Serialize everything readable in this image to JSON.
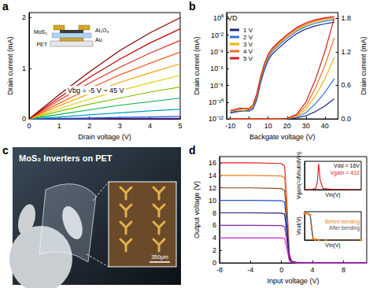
{
  "chart_data": [
    {
      "title": "a",
      "type": "line",
      "x_label": "Drain voltage (V)",
      "y_label": "Drain current (mA)",
      "x": [
        0,
        1,
        2,
        3,
        4,
        5
      ],
      "xlim": [
        0,
        5
      ],
      "xticks": [
        0,
        1,
        2,
        3,
        4,
        5
      ],
      "ylim": [
        0,
        2.1
      ],
      "yticks": [
        0,
        1,
        2
      ],
      "annotations": [
        "Vbg = -5 V ~ 45 V",
        "Al₂O₃",
        "PET",
        "MoS₂",
        "Au"
      ],
      "series": [
        {
          "color": "#6a1fb8",
          "values": [
            0,
            0,
            0,
            0.01,
            0.01,
            0.01
          ]
        },
        {
          "color": "#2060e0",
          "values": [
            0,
            0.01,
            0.02,
            0.03,
            0.04,
            0.05
          ]
        },
        {
          "color": "#00a0c0",
          "values": [
            0,
            0.04,
            0.08,
            0.12,
            0.16,
            0.19
          ]
        },
        {
          "color": "#00b050",
          "values": [
            0,
            0.09,
            0.18,
            0.27,
            0.34,
            0.41
          ]
        },
        {
          "color": "#80c000",
          "values": [
            0,
            0.15,
            0.29,
            0.41,
            0.53,
            0.63
          ]
        },
        {
          "color": "#e0d000",
          "values": [
            0,
            0.2,
            0.39,
            0.56,
            0.71,
            0.86
          ]
        },
        {
          "color": "#f5a000",
          "values": [
            0,
            0.26,
            0.5,
            0.72,
            0.91,
            1.09
          ]
        },
        {
          "color": "#f06020",
          "values": [
            0,
            0.31,
            0.6,
            0.87,
            1.1,
            1.32
          ]
        },
        {
          "color": "#e03020",
          "values": [
            0,
            0.37,
            0.71,
            1.02,
            1.3,
            1.55
          ]
        },
        {
          "color": "#c00000",
          "values": [
            0,
            0.42,
            0.82,
            1.18,
            1.5,
            1.78
          ]
        },
        {
          "color": "#800000",
          "values": [
            0,
            0.48,
            0.93,
            1.35,
            1.7,
            2.0
          ]
        }
      ]
    },
    {
      "title": "b",
      "type": "line",
      "log": "y",
      "legend": "upper left",
      "x_label": "Backgate voltage (V)",
      "y_label": "Drain current (mA)",
      "y2_label": "Drain current (mA)",
      "annotations": [
        "VD"
      ],
      "x": [
        -10,
        -5,
        0,
        2,
        4,
        6,
        8,
        10,
        12,
        15,
        20,
        25,
        30,
        35,
        40,
        45
      ],
      "xlim": [
        -12,
        47
      ],
      "xticks": [
        -10,
        0,
        10,
        20,
        30,
        40
      ],
      "ylim": [
        1e-12,
        5
      ],
      "yticks": [
        {
          "value": 1e-12,
          "label": "10⁻¹²"
        },
        {
          "value": 1e-10,
          "label": "10⁻¹⁰"
        },
        {
          "value": 1e-08,
          "label": "10⁻⁸"
        },
        {
          "value": 1e-06,
          "label": "10⁻⁶"
        },
        {
          "value": 0.0001,
          "label": "10⁻⁴"
        },
        {
          "value": 0.01,
          "label": "10⁻²"
        },
        {
          "value": 1,
          "label": "10⁰"
        }
      ],
      "y2lim": [
        0,
        1.9
      ],
      "y2ticks": [
        {
          "value": 0,
          "label": "0.0"
        },
        0.6,
        1.2,
        1.8
      ],
      "series": [
        {
          "name": "1 V",
          "color": "#1a2a80",
          "values": [
            5e-12,
            8e-12,
            1e-11,
            1.5e-11,
            2e-10,
            2e-08,
            7e-07,
            1e-05,
            5e-05,
            0.00022,
            0.0022,
            0.015,
            0.055,
            0.13,
            0.23,
            0.36
          ]
        },
        {
          "name": "2 V",
          "color": "#2e75d1",
          "values": [
            6e-12,
            1e-11,
            8e-12,
            2e-11,
            4e-10,
            4e-08,
            1.5e-06,
            2e-05,
            0.0001,
            0.00045,
            0.0045,
            0.03,
            0.11,
            0.27,
            0.47,
            0.72
          ]
        },
        {
          "name": "3 V",
          "color": "#f4b400",
          "values": [
            1e-11,
            1e-11,
            1.2e-11,
            3e-11,
            6e-10,
            6e-08,
            2.3e-06,
            3e-05,
            0.00015,
            0.0007,
            0.007,
            0.045,
            0.17,
            0.41,
            0.71,
            1.1
          ]
        },
        {
          "name": "4 V",
          "color": "#f07020",
          "values": [
            8e-12,
            1.5e-11,
            2e-11,
            4e-11,
            8e-10,
            8e-08,
            3e-06,
            4e-05,
            0.0002,
            0.0009,
            0.009,
            0.06,
            0.23,
            0.55,
            0.95,
            1.45
          ]
        },
        {
          "name": "5 V",
          "color": "#d02020",
          "values": [
            1e-11,
            2e-11,
            1.5e-11,
            5e-11,
            1e-09,
            1e-07,
            4e-06,
            5e-05,
            0.00025,
            0.0012,
            0.012,
            0.08,
            0.3,
            0.7,
            1.2,
            1.8
          ]
        },
        {
          "color": "#1a2a80",
          "axis": "y2",
          "values": [
            5e-12,
            8e-12,
            1e-11,
            1.5e-11,
            2e-10,
            2e-08,
            7e-07,
            1e-05,
            5e-05,
            0.00022,
            0.0022,
            0.015,
            0.055,
            0.13,
            0.23,
            0.36
          ]
        },
        {
          "color": "#2e75d1",
          "axis": "y2",
          "values": [
            6e-12,
            1e-11,
            8e-12,
            2e-11,
            4e-10,
            4e-08,
            1.5e-06,
            2e-05,
            0.0001,
            0.00045,
            0.0045,
            0.03,
            0.11,
            0.27,
            0.47,
            0.72
          ]
        },
        {
          "color": "#f4b400",
          "axis": "y2",
          "values": [
            1e-11,
            1e-11,
            1.2e-11,
            3e-11,
            6e-10,
            6e-08,
            2.3e-06,
            3e-05,
            0.00015,
            0.0007,
            0.007,
            0.045,
            0.17,
            0.41,
            0.71,
            1.1
          ]
        },
        {
          "color": "#f07020",
          "axis": "y2",
          "values": [
            8e-12,
            1.5e-11,
            2e-11,
            4e-11,
            8e-10,
            8e-08,
            3e-06,
            4e-05,
            0.0002,
            0.0009,
            0.009,
            0.06,
            0.23,
            0.55,
            0.95,
            1.45
          ]
        },
        {
          "color": "#d02020",
          "axis": "y2",
          "values": [
            1e-11,
            2e-11,
            1.5e-11,
            5e-11,
            1e-09,
            1e-07,
            4e-06,
            5e-05,
            0.00025,
            0.0012,
            0.012,
            0.08,
            0.3,
            0.7,
            1.2,
            1.8
          ]
        }
      ]
    },
    {
      "title": "d",
      "type": "line",
      "x_label": "Input voltage (V)",
      "y_label": "Output voltage (V)",
      "x": [
        -8,
        -4,
        0,
        0.4,
        0.7,
        1.0,
        1.3,
        2,
        4,
        8,
        11
      ],
      "xlim": [
        -8,
        11
      ],
      "xticks": [
        -8,
        -4,
        0,
        4,
        8
      ],
      "ylim": [
        0,
        17
      ],
      "yticks": [
        0,
        2,
        4,
        6,
        8,
        10,
        12,
        14,
        16
      ],
      "series": [
        {
          "color": "#e02020",
          "values": [
            16,
            16,
            15.9,
            15.5,
            9.6,
            1.6,
            0.3,
            0.08,
            0.04,
            0.02,
            0.02
          ]
        },
        {
          "color": "#f08020",
          "values": [
            14,
            14,
            13.9,
            13.6,
            8.4,
            1.4,
            0.28,
            0.07,
            0.04,
            0.02,
            0.02
          ]
        },
        {
          "color": "#8b4513",
          "values": [
            12,
            12,
            11.9,
            11.6,
            7.2,
            1.2,
            0.25,
            0.06,
            0.03,
            0.02,
            0.02
          ]
        },
        {
          "color": "#2050d0",
          "values": [
            10,
            10,
            9.95,
            9.7,
            6.0,
            1.0,
            0.2,
            0.05,
            0.03,
            0.02,
            0.02
          ]
        },
        {
          "color": "#1a1a70",
          "values": [
            8,
            8,
            7.95,
            7.8,
            4.8,
            0.8,
            0.16,
            0.04,
            0.02,
            0.01,
            0.01
          ]
        },
        {
          "color": "#8020a0",
          "values": [
            6,
            6,
            5.97,
            5.8,
            3.6,
            0.6,
            0.12,
            0.03,
            0.02,
            0.01,
            0.01
          ]
        },
        {
          "color": "#d020d0",
          "values": [
            4,
            4,
            3.98,
            3.9,
            2.4,
            0.4,
            0.08,
            0.02,
            0.01,
            0.01,
            0.01
          ]
        }
      ]
    },
    {
      "type": "line",
      "tick_labels": false,
      "x_label": "Vin(V)",
      "y_label": "Vgain(=dVout/dVin)",
      "annotations": [
        "Vdd = 16V",
        "Vgain = 412"
      ],
      "x": [
        0,
        0.5,
        0.8,
        0.9,
        1.0,
        1.1,
        1.3,
        2,
        3,
        4
      ],
      "xlim": [
        0,
        4
      ],
      "ylim": [
        0,
        450
      ],
      "series": [
        {
          "color": "#e02020",
          "values": [
            0,
            2,
            20,
            120,
            412,
            150,
            20,
            3,
            1,
            0
          ]
        }
      ]
    },
    {
      "type": "line",
      "tick_labels": false,
      "legend": "upper right",
      "x_label": "Vin(V)",
      "y_label": "Vout(V)",
      "x": [
        0,
        0.5,
        0.8,
        1.0,
        1.2,
        1.5,
        2,
        3,
        8
      ],
      "xlim": [
        0,
        8
      ],
      "ylim": [
        0,
        17
      ],
      "series": [
        {
          "name": "Before bending",
          "color": "#f08020",
          "marker": "circle",
          "values": [
            16,
            15.8,
            15,
            8,
            1,
            0.3,
            0.1,
            0.05,
            0.02
          ]
        },
        {
          "name": "After bending",
          "color": "#505050",
          "values": [
            16,
            15.7,
            14.5,
            7,
            0.8,
            0.25,
            0.1,
            0.05,
            0.02
          ]
        }
      ]
    }
  ],
  "photo": {
    "title": "c",
    "caption": "MoS₂ Inverters on PET",
    "scale_bar": "350μm"
  }
}
